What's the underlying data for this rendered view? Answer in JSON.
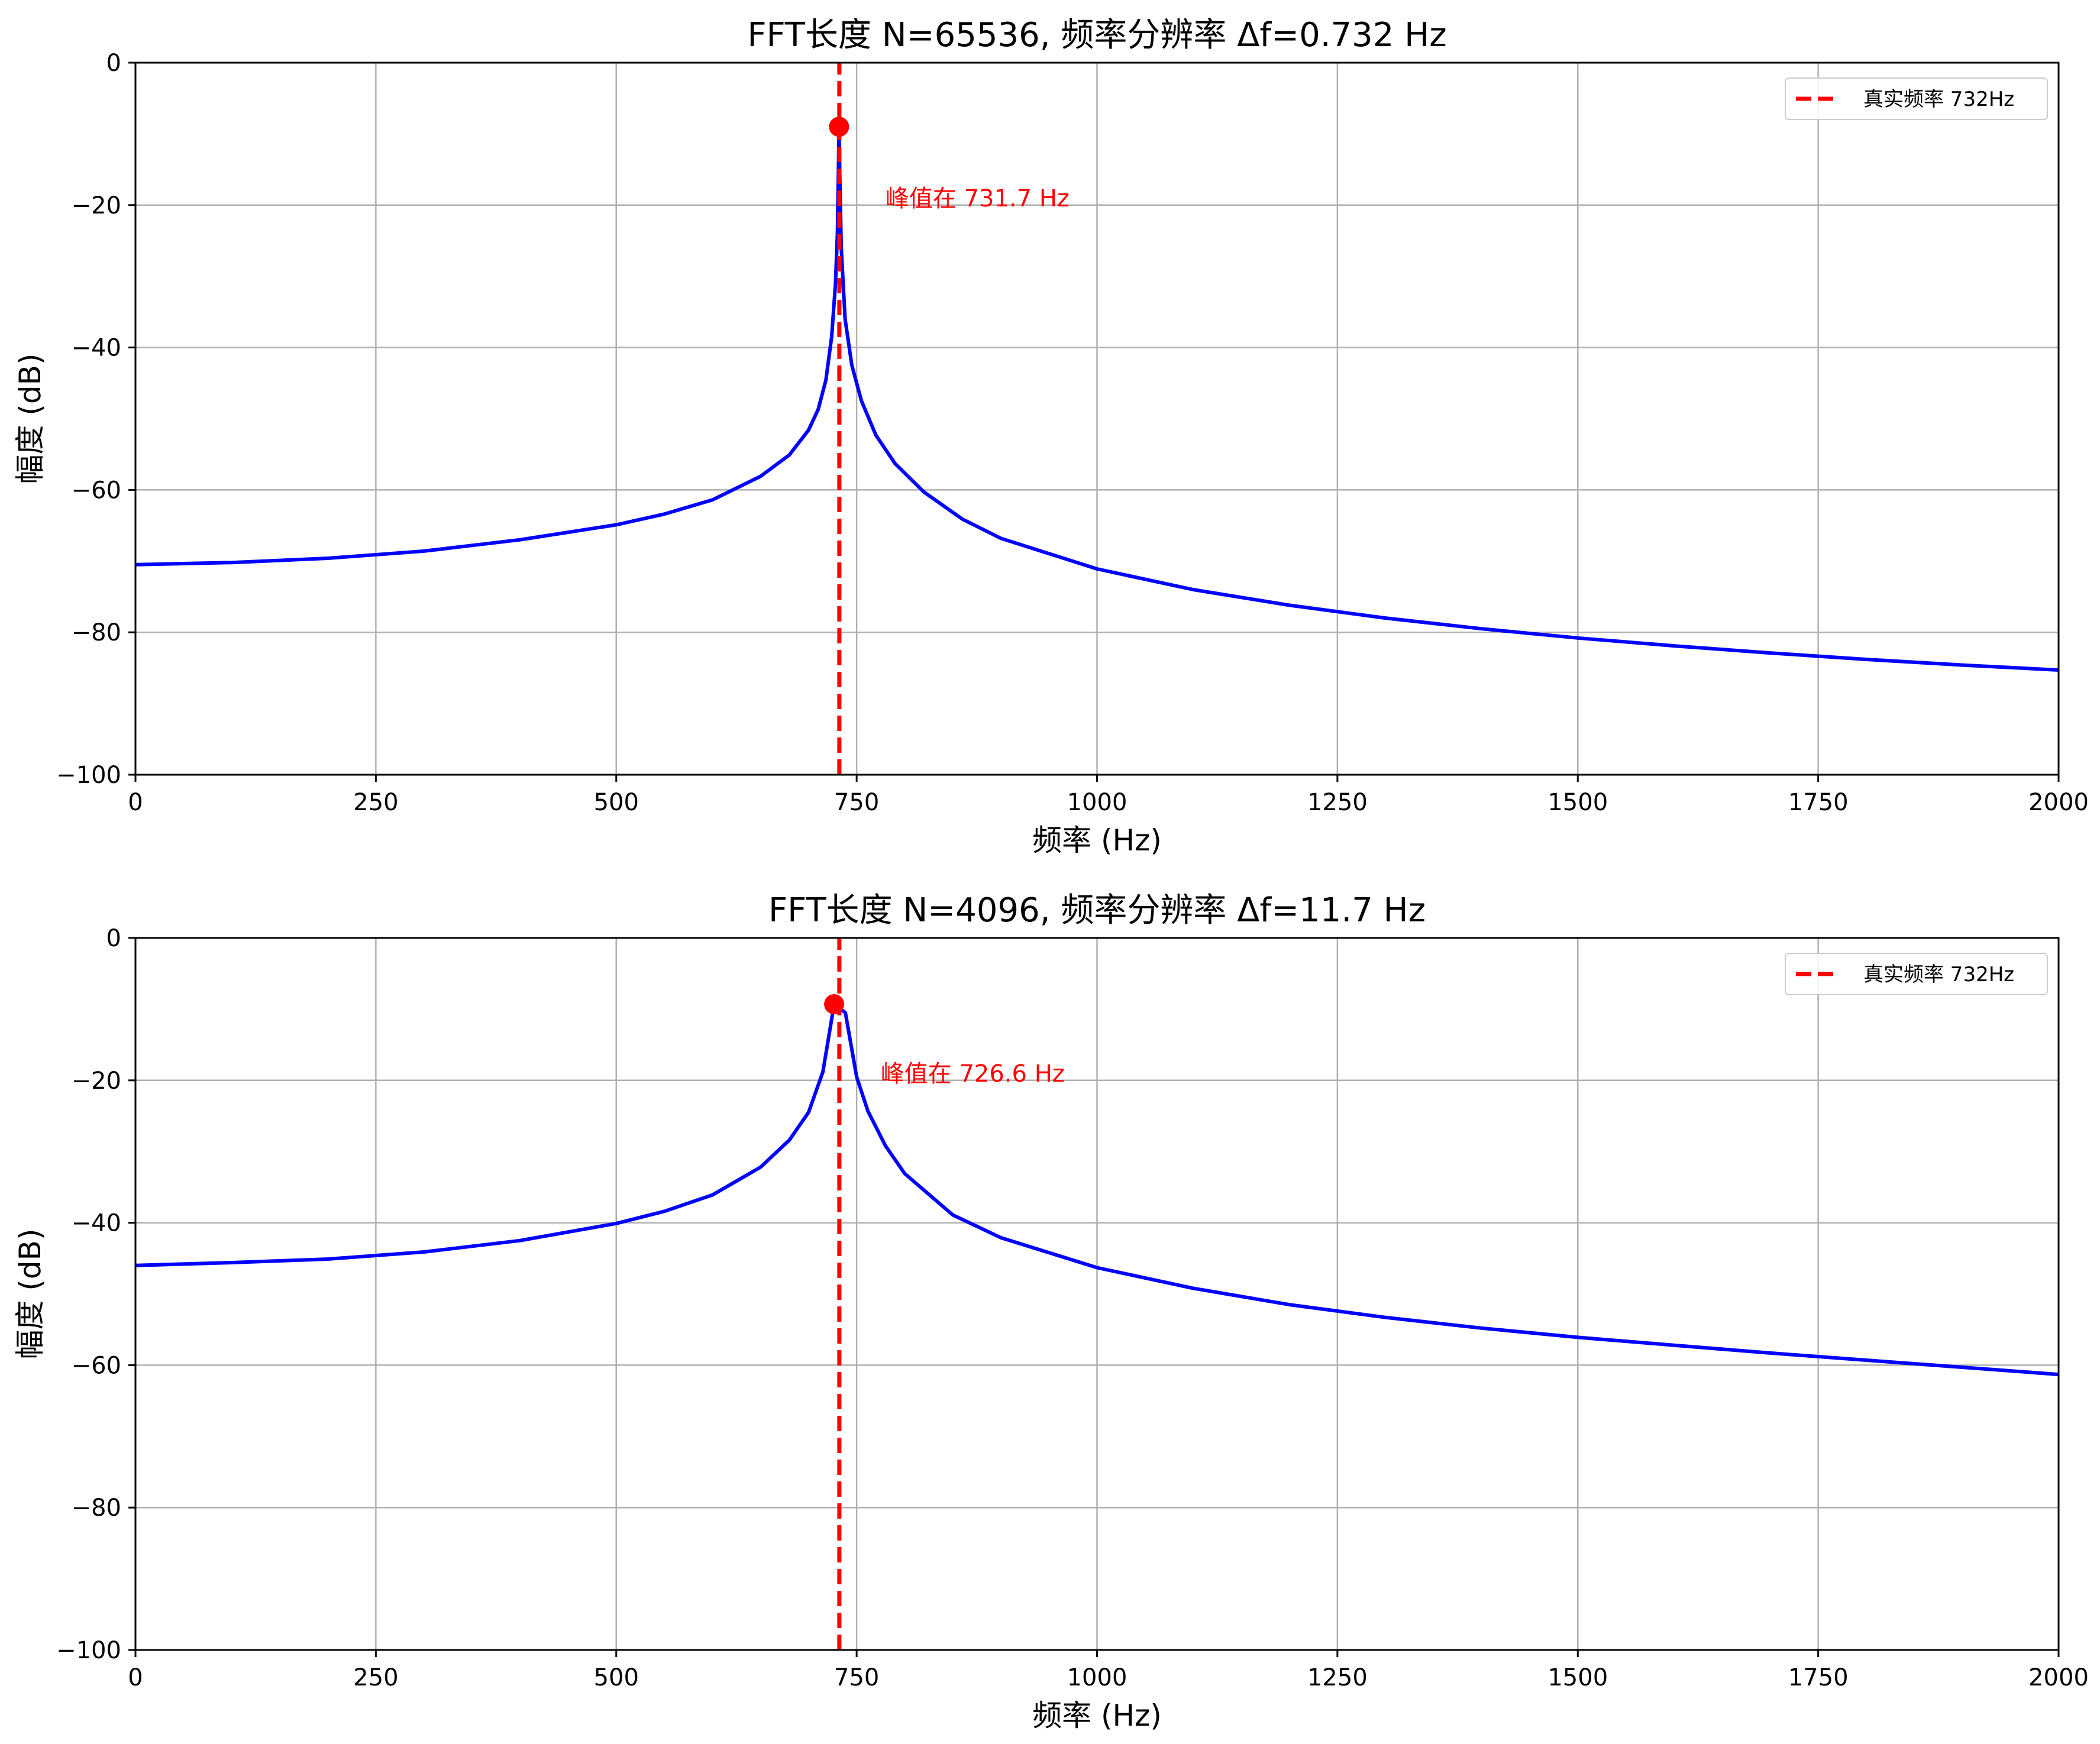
{
  "chart_data": [
    {
      "type": "line",
      "title": "FFT长度 N=65536, 频率分辨率 Δf=0.732 Hz",
      "xlabel": "频率 (Hz)",
      "ylabel": "幅度 (dB)",
      "xlim": [
        0,
        2000
      ],
      "ylim": [
        -100,
        0
      ],
      "xticks": [
        0,
        250,
        500,
        750,
        1000,
        1250,
        1500,
        1750,
        2000
      ],
      "xtick_labels": [
        "0",
        "250",
        "500",
        "750",
        "1000",
        "1250",
        "1500",
        "1750",
        "2000"
      ],
      "yticks": [
        0,
        -20,
        -40,
        -60,
        -80,
        -100
      ],
      "ytick_labels": [
        "0",
        "−20",
        "−40",
        "−60",
        "−80",
        "−100"
      ],
      "grid": true,
      "legend_position": "top-right",
      "series": [
        {
          "color": "#0000ff",
          "x": [
            0,
            100,
            200,
            300,
            400,
            500,
            550,
            600,
            650,
            680,
            700,
            710,
            718,
            724,
            728,
            730,
            731,
            731.7,
            732.5,
            734,
            738,
            745,
            755,
            770,
            790,
            820,
            860,
            900,
            1000,
            1100,
            1200,
            1300,
            1400,
            1500,
            1600,
            1700,
            1800,
            1900,
            2000
          ],
          "y": [
            -70.5,
            -70.2,
            -69.6,
            -68.6,
            -67,
            -64.9,
            -63.4,
            -61.4,
            -58.1,
            -55.1,
            -51.6,
            -48.7,
            -44.6,
            -38.5,
            -31,
            -24,
            -16,
            -9,
            -16,
            -26,
            -36,
            -42.5,
            -47.5,
            -52.3,
            -56.3,
            -60.3,
            -64.1,
            -66.8,
            -71.1,
            -74,
            -76.2,
            -78,
            -79.5,
            -80.8,
            -81.9,
            -82.9,
            -83.8,
            -84.6,
            -85.3
          ]
        },
        {
          "name": "真实频率 732Hz",
          "color": "#ff0000",
          "style": "dashed",
          "x": [
            732,
            732
          ],
          "y": [
            -100,
            0
          ]
        }
      ],
      "peak_marker": {
        "x": 731.7,
        "y": -9,
        "color": "#ff0000"
      },
      "annotations": [
        {
          "text": "峰值在 731.7 Hz",
          "x": 780,
          "y": -19
        }
      ]
    },
    {
      "type": "line",
      "title": "FFT长度 N=4096, 频率分辨率 Δf=11.7 Hz",
      "xlabel": "频率 (Hz)",
      "ylabel": "幅度 (dB)",
      "xlim": [
        0,
        2000
      ],
      "ylim": [
        -100,
        0
      ],
      "xticks": [
        0,
        250,
        500,
        750,
        1000,
        1250,
        1500,
        1750,
        2000
      ],
      "xtick_labels": [
        "0",
        "250",
        "500",
        "750",
        "1000",
        "1250",
        "1500",
        "1750",
        "2000"
      ],
      "yticks": [
        0,
        -20,
        -40,
        -60,
        -80,
        -100
      ],
      "ytick_labels": [
        "0",
        "−20",
        "−40",
        "−60",
        "−80",
        "−100"
      ],
      "grid": true,
      "legend_position": "top-right",
      "series": [
        {
          "color": "#0000ff",
          "x": [
            0,
            100,
            200,
            300,
            400,
            500,
            550,
            600,
            650,
            680,
            700,
            714.9,
            726.6,
            738.3,
            750,
            761.7,
            780,
            800,
            850,
            900,
            1000,
            1100,
            1200,
            1300,
            1400,
            1500,
            1600,
            1700,
            1800,
            1900,
            2000
          ],
          "y": [
            -46,
            -45.6,
            -45.1,
            -44.1,
            -42.5,
            -40.1,
            -38.4,
            -36.1,
            -32.2,
            -28.4,
            -24.5,
            -18.8,
            -9.3,
            -10.5,
            -19.5,
            -24.3,
            -29.2,
            -33.1,
            -38.9,
            -42.1,
            -46.3,
            -49.2,
            -51.5,
            -53.3,
            -54.8,
            -56.1,
            -57.2,
            -58.3,
            -59.3,
            -60.3,
            -61.3
          ]
        },
        {
          "name": "真实频率 732Hz",
          "color": "#ff0000",
          "style": "dashed",
          "x": [
            732,
            732
          ],
          "y": [
            -100,
            0
          ]
        }
      ],
      "peak_marker": {
        "x": 726.6,
        "y": -9.3,
        "color": "#ff0000"
      },
      "annotations": [
        {
          "text": "峰值在 726.6 Hz",
          "x": 775,
          "y": -19
        }
      ]
    }
  ]
}
